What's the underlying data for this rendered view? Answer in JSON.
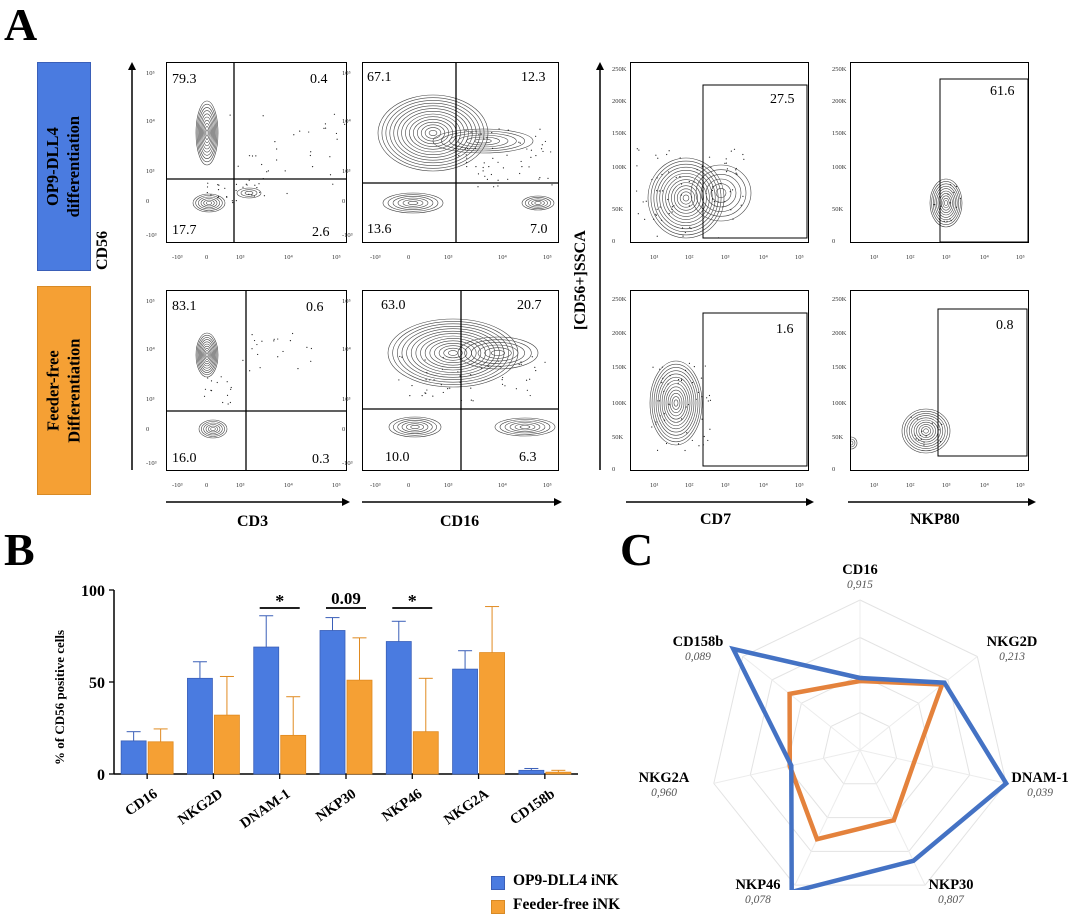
{
  "colors": {
    "blue": "#4a7be0",
    "orange": "#f5a034",
    "blue_dark": "#4472c4",
    "orange_dark": "#e4823c"
  },
  "panels": {
    "a": "A",
    "b": "B",
    "c": "C"
  },
  "groups": {
    "op9": "OP9-DLL4\ndifferentiation",
    "feeder": "Feeder-free\nDifferentiation"
  },
  "axes": {
    "cd56": "CD56",
    "cd3": "CD3",
    "cd16": "CD16",
    "ssca": "[CD56+]SSCA",
    "cd7": "CD7",
    "nkp80": "NKP80"
  },
  "flow": {
    "op9_cd3": {
      "tl": "79.3",
      "tr": "0.4",
      "bl": "17.7",
      "br": "2.6"
    },
    "op9_cd16": {
      "tl": "67.1",
      "tr": "12.3",
      "bl": "13.6",
      "br": "7.0"
    },
    "ff_cd3": {
      "tl": "83.1",
      "tr": "0.6",
      "bl": "16.0",
      "br": "0.3"
    },
    "ff_cd16": {
      "tl": "63.0",
      "tr": "20.7",
      "bl": "10.0",
      "br": "6.3"
    },
    "op9_cd7": "27.5",
    "op9_nkp80": "61.6",
    "ff_cd7": "1.6",
    "ff_nkp80": "0.8"
  },
  "ticks": {
    "log_y": [
      "10⁵",
      "10⁴",
      "10³",
      "0",
      "-10³"
    ],
    "log_x": [
      "-10³",
      "0",
      "10³",
      "10⁴",
      "10⁵"
    ],
    "ssc_y": [
      "250K",
      "200K",
      "150K",
      "100K",
      "50K",
      "0"
    ],
    "log_x2": [
      "10¹",
      "10²",
      "10³",
      "10⁴",
      "10⁵"
    ]
  },
  "chart_data": [
    {
      "type": "bar",
      "ylabel": "% of CD56 positive cells",
      "ylim": [
        0,
        100
      ],
      "yticks": [
        "0",
        "50",
        "100"
      ],
      "categories": [
        "CD16",
        "NKG2D",
        "DNAM-1",
        "NKP30",
        "NKP46",
        "NKG2A",
        "CD158b"
      ],
      "series": [
        {
          "name": "OP9-DLL4 iNK",
          "values": [
            18,
            52,
            69,
            78,
            72,
            57,
            2
          ],
          "errors": [
            5,
            9,
            17,
            7,
            11,
            10,
            1
          ]
        },
        {
          "name": "Feeder-free iNK",
          "values": [
            17.5,
            32,
            21,
            51,
            23,
            66,
            1
          ],
          "errors": [
            7,
            21,
            21,
            23,
            29,
            25,
            1
          ]
        }
      ],
      "annotations": [
        {
          "category": "DNAM-1",
          "text": "*"
        },
        {
          "category": "NKP30",
          "text": "0.09"
        },
        {
          "category": "NKP46",
          "text": "*"
        }
      ]
    },
    {
      "type": "radar",
      "axes": [
        "CD16",
        "NKG2D",
        "DNAM-1",
        "NKP30",
        "NKP46",
        "NKG2A",
        "CD158b"
      ],
      "pvalues": [
        "0,915",
        "0,213",
        "0,039",
        "0,807",
        "0,078",
        "0,960",
        "0,089"
      ],
      "rings": 4,
      "series": [
        {
          "name": "OP9-DLL4 iNK",
          "values": [
            0.48,
            0.72,
            1.0,
            0.82,
            1.05,
            0.47,
            1.08
          ]
        },
        {
          "name": "Feeder-free iNK",
          "values": [
            0.46,
            0.7,
            0.37,
            0.52,
            0.66,
            0.48,
            0.6
          ]
        }
      ]
    }
  ]
}
